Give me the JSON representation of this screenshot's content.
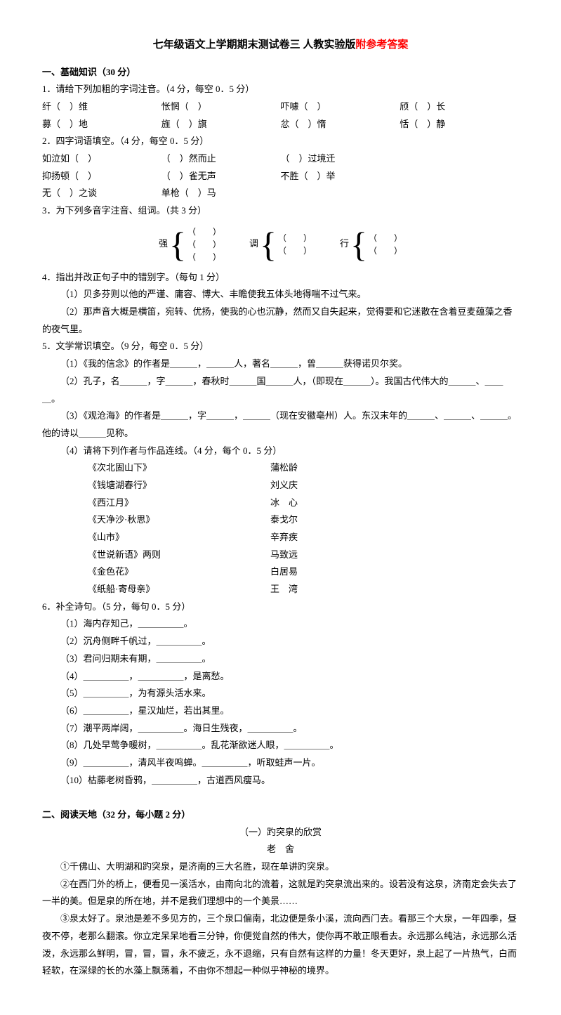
{
  "title_main": "七年级语文上学期期末测试卷三  人教实验版",
  "title_red": "附参考答案",
  "s1": {
    "head": "一、基础知识（30 分）",
    "q1": "1．请给下列加粗的字词注音。（4 分，每空 0．5 分）",
    "q1r1": [
      "纤（　）维",
      "怅惘（　）",
      "吓噱（　）",
      "颀（　）长"
    ],
    "q1r2": [
      "募（　）地",
      "旌（　）旗",
      "忿（　）惰",
      "恬（　）静"
    ],
    "q2": "2．四字词语填空。（4 分，每空 0．5 分）",
    "q2r1": [
      "如泣如（　）",
      "（　）然而止",
      "（　）过境迁"
    ],
    "q2r2": [
      "抑扬顿（　）",
      "（　）雀无声",
      "不胜（　）举"
    ],
    "q2r3": [
      "无（　）之谈",
      "单枪（　）马"
    ],
    "q3": "3．为下列多音字注音、组词。（共 3 分）",
    "q3c": [
      "强",
      "调",
      "行"
    ],
    "q3line": "（　　）",
    "q4": "4．指出并改正句子中的错别字。（每句 1 分）",
    "q4a": "（1）贝多芬则以他的严谨、庸容、博大、丰瞻使我五体头地得喘不过气来。",
    "q4b": "（2）那声音大概是横笛，宛转、优扬，使我的心也沉静，然而又自失起来，觉得要和它迷散在含着豆麦蕴藻之香的夜气里。",
    "q5": "5．文学常识填空。（9 分，每空 0．5 分）",
    "q5a": "（1）《我的信念》的作者是＿＿＿，＿＿＿人，著名＿＿＿，曾＿＿＿获得诺贝尔奖。",
    "q5b": "（2）孔子，名＿＿＿，字＿＿＿，春秋时＿＿＿国＿＿＿人，（即现在＿＿＿）。我国古代伟大的＿＿＿、＿＿＿。",
    "q5c": "（3）《观沧海》的作者是＿＿＿，字＿＿＿，＿＿＿（现在安徽亳州）人。东汉末年的＿＿＿、＿＿＿、＿＿＿。他的诗以＿＿＿见称。",
    "q5d": "（4）请将下列作者与作品连线。（4 分，每个 0．5 分）",
    "q5match": [
      [
        "《次北固山下》",
        "蒲松龄"
      ],
      [
        "《钱塘湖春行》",
        "刘义庆"
      ],
      [
        "《西江月》",
        "冰　心"
      ],
      [
        "《天净沙·秋思》",
        "泰戈尔"
      ],
      [
        "《山市》",
        "辛弃疾"
      ],
      [
        "《世说新语》两则",
        "马致远"
      ],
      [
        "《金色花》",
        "白居易"
      ],
      [
        "《纸船·寄母亲》",
        "王　湾"
      ]
    ],
    "q6": "6．补全诗句。（5 分，每句 0．5 分）",
    "q6l": [
      "（1）海内存知己，＿＿＿＿＿。",
      "（2）沉舟侧畔千帆过，＿＿＿＿＿。",
      "（3）君问归期未有期，＿＿＿＿＿。",
      "（4）＿＿＿＿＿，＿＿＿＿＿，是离愁。",
      "（5）＿＿＿＿＿，为有源头活水来。",
      "（6）＿＿＿＿＿，星汉灿烂，若出其里。",
      "（7）潮平两岸阔，＿＿＿＿＿。海日生残夜，＿＿＿＿＿。",
      "（8）几处早莺争暖树，＿＿＿＿＿。乱花渐欲迷人眼，＿＿＿＿＿。",
      "（9）＿＿＿＿＿，清风半夜鸣蝉。＿＿＿＿＿，听取蛙声一片。",
      "（10）枯藤老树昏鸦，＿＿＿＿＿，古道西风瘦马。"
    ]
  },
  "s2": {
    "head": "二、阅读天地（32 分，每小题 2 分）",
    "essay_title": "（一）趵突泉的欣赏",
    "essay_author": "老　舍",
    "p1": "①千佛山、大明湖和趵突泉，是济南的三大名胜，现在单讲趵突泉。",
    "p2": "②在西门外的桥上，便看见一溪活水，由南向北的流着，这就是趵突泉流出来的。设若没有这泉，济南定会失去了一半的美。但是泉的所在地，并不是我们理想中的一个美景……",
    "p3": "③泉太好了。泉池是差不多见方的，三个泉口偏南，北边便是条小溪，流向西门去。看那三个大泉，一年四季，昼夜不停，老那么翻滚。你立定呆呆地看三分钟，你便觉自然的伟大，使你再不敢正眼看去。永远那么纯洁，永远那么活泼，永远那么鲜明，冒，冒，冒，永不疲乏，永不退缩，只有自然有这样的力量！冬天更好，泉上起了一片热气，白而轻软，在深绿的长的水藻上飘荡着，不由你不想起一种似乎神秘的境界。"
  }
}
